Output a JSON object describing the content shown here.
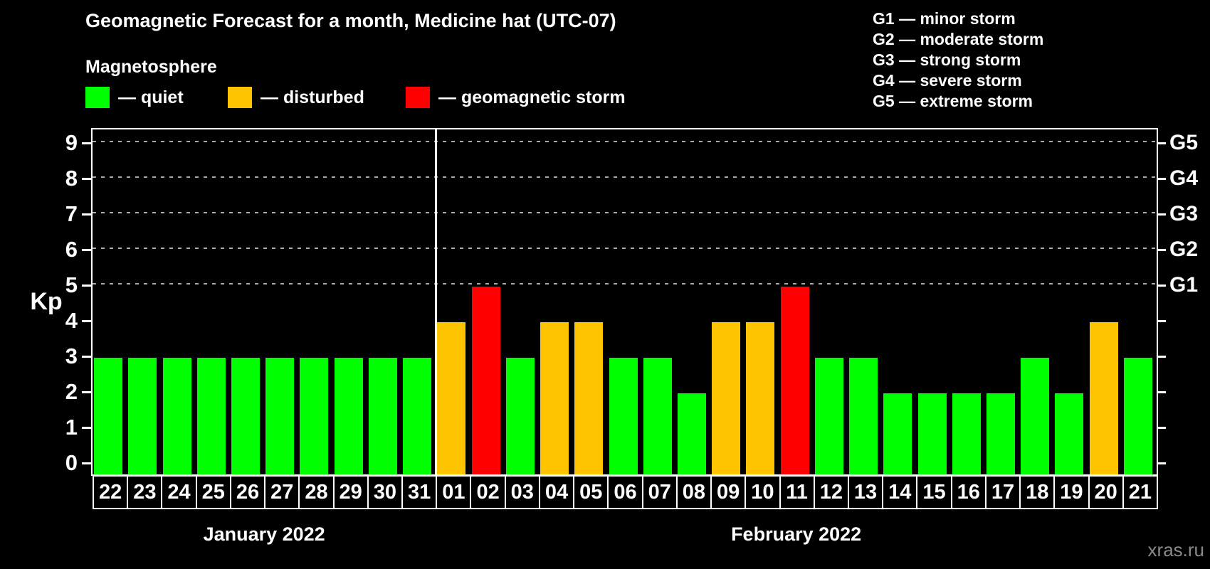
{
  "watermark": "xras.ru",
  "legend": {
    "title": "Magnetosphere",
    "items": [
      {
        "name": "quiet",
        "label": "— quiet",
        "color": "#00ff00",
        "x": 120
      },
      {
        "name": "disturbed",
        "label": "— disturbed",
        "color": "#ffc400",
        "x": 320
      },
      {
        "name": "geomagnetic-storm",
        "label": "— geomagnetic storm",
        "color": "#ff0000",
        "x": 570
      }
    ]
  },
  "g_scale_legend": [
    "G1 — minor storm",
    "G2 — moderate storm",
    "G3 — strong storm",
    "G4 — severe storm",
    "G5 — extreme storm"
  ],
  "chart_data": {
    "type": "bar",
    "title": "Geomagnetic Forecast for a month, Medicine hat (UTC-07)",
    "xlabel": "",
    "ylabel": "Kp",
    "ylim": [
      0,
      9
    ],
    "y_ticks": [
      0,
      1,
      2,
      3,
      4,
      5,
      6,
      7,
      8,
      9
    ],
    "grid": {
      "horizontal_dashed_at_kp": [
        5,
        6,
        7,
        8,
        9
      ]
    },
    "right_axis": {
      "labels": [
        "G1",
        "G2",
        "G3",
        "G4",
        "G5"
      ],
      "at_kp": [
        5,
        6,
        7,
        8,
        9
      ]
    },
    "legend_position": "top-left",
    "colors": {
      "quiet": "#00ff00",
      "disturbed": "#ffc400",
      "storm": "#ff0000"
    },
    "series": [
      {
        "month": "January 2022",
        "days": [
          {
            "day": "22",
            "kp": 3,
            "status": "quiet"
          },
          {
            "day": "23",
            "kp": 3,
            "status": "quiet"
          },
          {
            "day": "24",
            "kp": 3,
            "status": "quiet"
          },
          {
            "day": "25",
            "kp": 3,
            "status": "quiet"
          },
          {
            "day": "26",
            "kp": 3,
            "status": "quiet"
          },
          {
            "day": "27",
            "kp": 3,
            "status": "quiet"
          },
          {
            "day": "28",
            "kp": 3,
            "status": "quiet"
          },
          {
            "day": "29",
            "kp": 3,
            "status": "quiet"
          },
          {
            "day": "30",
            "kp": 3,
            "status": "quiet"
          },
          {
            "day": "31",
            "kp": 3,
            "status": "quiet"
          }
        ]
      },
      {
        "month": "February 2022",
        "days": [
          {
            "day": "01",
            "kp": 4,
            "status": "disturbed"
          },
          {
            "day": "02",
            "kp": 5,
            "status": "storm"
          },
          {
            "day": "03",
            "kp": 3,
            "status": "quiet"
          },
          {
            "day": "04",
            "kp": 4,
            "status": "disturbed"
          },
          {
            "day": "05",
            "kp": 4,
            "status": "disturbed"
          },
          {
            "day": "06",
            "kp": 3,
            "status": "quiet"
          },
          {
            "day": "07",
            "kp": 3,
            "status": "quiet"
          },
          {
            "day": "08",
            "kp": 2,
            "status": "quiet"
          },
          {
            "day": "09",
            "kp": 4,
            "status": "disturbed"
          },
          {
            "day": "10",
            "kp": 4,
            "status": "disturbed"
          },
          {
            "day": "11",
            "kp": 5,
            "status": "storm"
          },
          {
            "day": "12",
            "kp": 3,
            "status": "quiet"
          },
          {
            "day": "13",
            "kp": 3,
            "status": "quiet"
          },
          {
            "day": "14",
            "kp": 2,
            "status": "quiet"
          },
          {
            "day": "15",
            "kp": 2,
            "status": "quiet"
          },
          {
            "day": "16",
            "kp": 2,
            "status": "quiet"
          },
          {
            "day": "17",
            "kp": 2,
            "status": "quiet"
          },
          {
            "day": "18",
            "kp": 3,
            "status": "quiet"
          },
          {
            "day": "19",
            "kp": 2,
            "status": "quiet"
          },
          {
            "day": "20",
            "kp": 4,
            "status": "disturbed"
          },
          {
            "day": "21",
            "kp": 3,
            "status": "quiet"
          }
        ]
      }
    ]
  }
}
